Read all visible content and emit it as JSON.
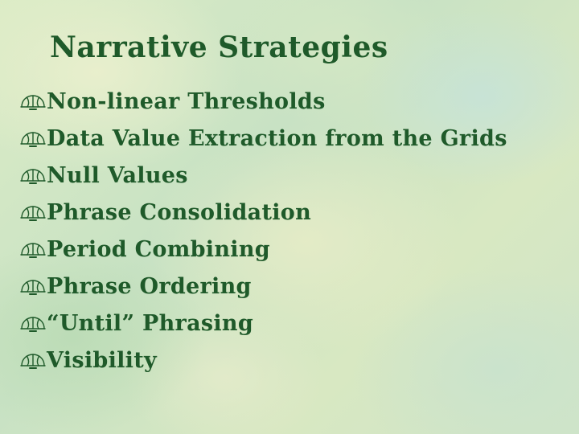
{
  "slide": {
    "title": "Narrative Strategies",
    "bullet_icon": "fleur-de-lis-icon",
    "text_color": "#1f5a2a",
    "items": [
      "Non-linear Thresholds",
      "Data Value Extraction from the Grids",
      "Null Values",
      "Phrase Consolidation",
      "Period Combining",
      "Phrase Ordering",
      "“Until” Phrasing",
      "Visibility"
    ]
  }
}
